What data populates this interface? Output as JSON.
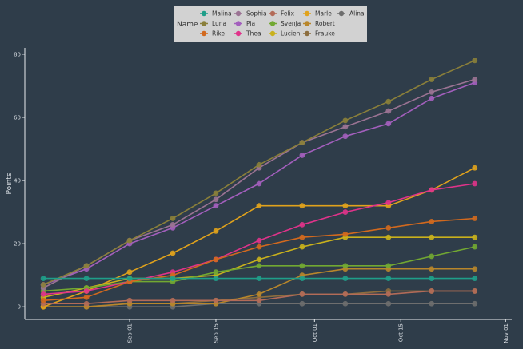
{
  "chart_data": {
    "type": "line",
    "title": "",
    "xlabel": "",
    "ylabel": "Points",
    "x": [
      "2023-08-18",
      "2023-08-25",
      "2023-09-01",
      "2023-09-08",
      "2023-09-15",
      "2023-09-22",
      "2023-09-29",
      "2023-10-06",
      "2023-10-13",
      "2023-10-20",
      "2023-10-27"
    ],
    "x_ticks": [
      {
        "date": "2023-09-01",
        "label": "Sep 01"
      },
      {
        "date": "2023-09-15",
        "label": "Sep 15"
      },
      {
        "date": "2023-10-01",
        "label": "Oct 01"
      },
      {
        "date": "2023-10-15",
        "label": "Oct 15"
      },
      {
        "date": "2023-11-01",
        "label": "Nov 01"
      }
    ],
    "xlim": [
      "2023-08-15",
      "2023-11-02"
    ],
    "y_ticks": [
      0,
      20,
      40,
      60,
      80
    ],
    "ylim": [
      -4,
      82
    ],
    "grid": false,
    "legend_title": "Name",
    "legend_position": "top",
    "series": [
      {
        "name": "Malina",
        "color": "#1f9e89",
        "values": [
          9,
          9,
          9,
          9,
          9,
          9,
          9,
          9,
          9,
          9,
          9
        ]
      },
      {
        "name": "Luna",
        "color": "#8a7f3a",
        "values": [
          7,
          13,
          21,
          28,
          36,
          45,
          52,
          59,
          65,
          72,
          78
        ]
      },
      {
        "name": "Rike",
        "color": "#d2691e",
        "values": [
          2,
          3,
          8,
          10,
          15,
          19,
          22,
          23,
          25,
          27,
          28
        ]
      },
      {
        "name": "Sophia",
        "color": "#9b7393",
        "values": [
          6,
          13,
          21,
          26,
          34,
          44,
          52,
          57,
          62,
          68,
          72
        ]
      },
      {
        "name": "Pia",
        "color": "#a35fbd",
        "values": [
          7,
          12,
          20,
          25,
          32,
          39,
          48,
          54,
          58,
          66,
          71
        ]
      },
      {
        "name": "Thea",
        "color": "#e0338a",
        "values": [
          4,
          5,
          8,
          11,
          15,
          21,
          26,
          30,
          33,
          37,
          39
        ]
      },
      {
        "name": "Felix",
        "color": "#b36b58",
        "values": [
          1,
          1,
          2,
          2,
          2,
          2,
          4,
          4,
          4,
          5,
          5
        ]
      },
      {
        "name": "Svenja",
        "color": "#72a832",
        "values": [
          5,
          6,
          8,
          8,
          11,
          13,
          13,
          13,
          13,
          16,
          19
        ]
      },
      {
        "name": "Lucien",
        "color": "#c9b11c",
        "values": [
          3,
          6,
          9,
          9,
          10,
          15,
          19,
          22,
          22,
          22,
          22
        ]
      },
      {
        "name": "Marle",
        "color": "#e0a21c",
        "values": [
          0,
          5,
          11,
          17,
          24,
          32,
          32,
          32,
          32,
          37,
          44
        ]
      },
      {
        "name": "Robert",
        "color": "#b8862b",
        "values": [
          0,
          0,
          1,
          1,
          1,
          4,
          10,
          12,
          12,
          12,
          12
        ]
      },
      {
        "name": "Frauke",
        "color": "#8c6d3e",
        "values": [
          0,
          0,
          1,
          1,
          2,
          3,
          4,
          4,
          5,
          5,
          5
        ]
      },
      {
        "name": "Alina",
        "color": "#6e6e6e",
        "values": [
          0,
          0,
          0,
          0,
          1,
          1,
          1,
          1,
          1,
          1,
          1
        ]
      }
    ]
  }
}
